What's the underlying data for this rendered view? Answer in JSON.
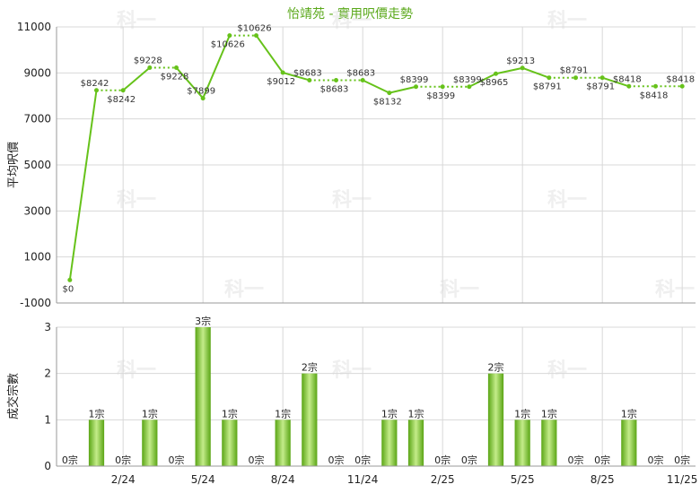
{
  "colors": {
    "line": "#66c21a",
    "title": "#5aa81a",
    "grid": "#d8d8d8",
    "bar_light": "#c4ec8a",
    "bar_dark": "#5aa515"
  },
  "watermark": "科一",
  "chart_data": [
    {
      "type": "line",
      "title": "怡靖苑 - 實用呎價走勢",
      "ylabel": "平均呎價",
      "ylim": [
        -1000,
        11000
      ],
      "yticks": [
        "11000",
        "9000",
        "7000",
        "5000",
        "3000",
        "1000",
        "-1000"
      ],
      "xlabel": "",
      "values": [
        0,
        8242,
        8242,
        9228,
        9228,
        7899,
        10626,
        10626,
        9012,
        8683,
        8683,
        8683,
        8132,
        8399,
        8399,
        8399,
        8965,
        9213,
        8791,
        8791,
        8791,
        8418,
        8418,
        8418
      ],
      "labels": [
        "$0",
        "$8242",
        "$8242",
        "$9228",
        "$9228",
        "$7899",
        "$10626",
        "$10626",
        "$9012",
        "$8683",
        "$8683",
        "$8683",
        "$8132",
        "$8399",
        "$8399",
        "$8399",
        "$8965",
        "$9213",
        "$8791",
        "$8791",
        "$8791",
        "$8418",
        "$8418",
        "$8418"
      ],
      "carried": [
        false,
        false,
        true,
        false,
        true,
        false,
        false,
        true,
        false,
        false,
        true,
        true,
        false,
        false,
        true,
        true,
        false,
        false,
        false,
        true,
        true,
        false,
        true,
        true
      ],
      "grid": true
    },
    {
      "type": "bar",
      "ylabel": "成交宗數",
      "ylim": [
        0,
        3
      ],
      "yticks": [
        "3",
        "2",
        "1",
        "0"
      ],
      "values": [
        0,
        1,
        0,
        1,
        0,
        3,
        1,
        0,
        1,
        2,
        0,
        0,
        1,
        1,
        0,
        0,
        2,
        1,
        1,
        0,
        0,
        1,
        0,
        0
      ],
      "labels": [
        "0宗",
        "1宗",
        "0宗",
        "1宗",
        "0宗",
        "3宗",
        "1宗",
        "0宗",
        "1宗",
        "2宗",
        "0宗",
        "0宗",
        "1宗",
        "1宗",
        "0宗",
        "0宗",
        "2宗",
        "1宗",
        "1宗",
        "0宗",
        "0宗",
        "1宗",
        "0宗",
        "0宗"
      ],
      "x_ticks": [
        "2/24",
        "5/24",
        "8/24",
        "11/24",
        "2/25",
        "5/25",
        "8/25",
        "11/25"
      ],
      "grid": true
    }
  ]
}
